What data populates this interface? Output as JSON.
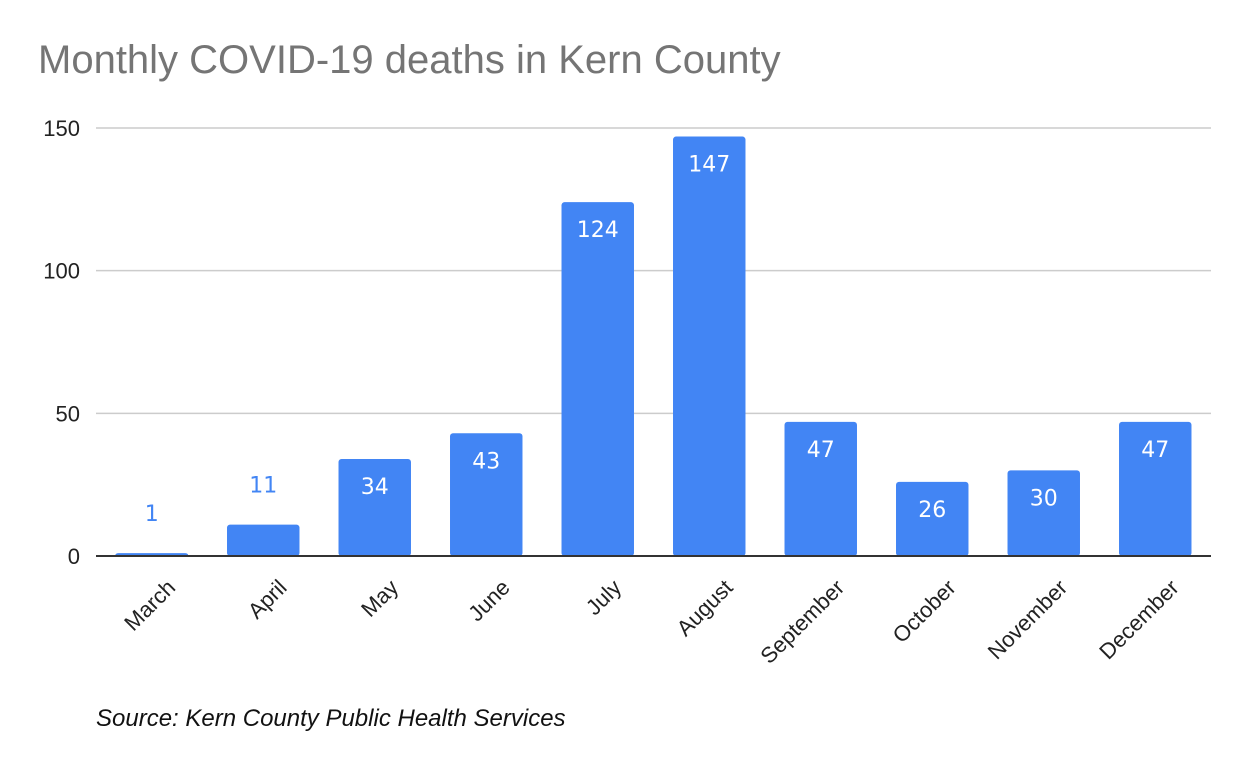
{
  "chart_data": {
    "type": "bar",
    "title": "Monthly COVID-19 deaths in Kern County",
    "xlabel": "",
    "ylabel": "",
    "categories": [
      "March",
      "April",
      "May",
      "June",
      "July",
      "August",
      "September",
      "October",
      "November",
      "December"
    ],
    "values": [
      1,
      11,
      34,
      43,
      124,
      147,
      47,
      26,
      30,
      47
    ],
    "data_labels": [
      "1",
      "11",
      "34",
      "43",
      "124",
      "147",
      "47",
      "26",
      "30",
      "47"
    ],
    "ylim": [
      0,
      150
    ],
    "yticks": [
      0,
      50,
      100,
      150
    ],
    "ytick_labels": [
      "0",
      "50",
      "100",
      "150"
    ],
    "grid": true,
    "legend": "none",
    "bar_color": "#4285f4",
    "note": "Source: Kern County Public Health Services"
  }
}
